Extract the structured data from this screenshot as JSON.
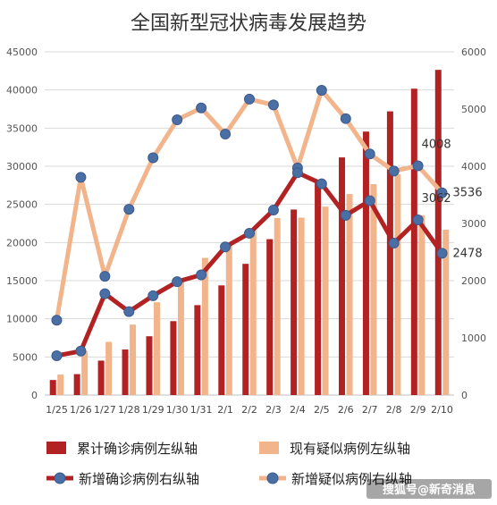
{
  "chart_data": {
    "type": "bar+line",
    "title": "全国新型冠状病毒发展趋势",
    "categories": [
      "1/25",
      "1/26",
      "1/27",
      "1/28",
      "1/29",
      "1/30",
      "1/31",
      "2/1",
      "2/2",
      "2/3",
      "2/4",
      "2/5",
      "2/6",
      "2/7",
      "2/8",
      "2/9",
      "2/10"
    ],
    "left_axis": {
      "min": 0,
      "max": 45000,
      "step": 5000,
      "ticks": [
        "0",
        "5000",
        "10000",
        "15000",
        "20000",
        "25000",
        "30000",
        "35000",
        "40000",
        "45000"
      ]
    },
    "right_axis": {
      "min": 0,
      "max": 6000,
      "step": 1000,
      "ticks": [
        "0",
        "1000",
        "2000",
        "3000",
        "4000",
        "5000",
        "6000"
      ]
    },
    "bar_series": [
      {
        "name": "累计确诊病例左纵轴",
        "color": "#b22222",
        "axis": "left",
        "values": [
          1975,
          2744,
          4515,
          5974,
          7711,
          9692,
          11791,
          14380,
          17205,
          20438,
          24324,
          28018,
          31161,
          34546,
          37198,
          40171,
          42638
        ]
      },
      {
        "name": "现有疑似病例左纵轴",
        "color": "#f2b48a",
        "axis": "left",
        "values": [
          2684,
          5794,
          6973,
          9239,
          12167,
          15238,
          17988,
          19544,
          21558,
          23214,
          23260,
          24702,
          26359,
          27657,
          28942,
          23589,
          21675
        ]
      }
    ],
    "line_series": [
      {
        "name": "新增确诊病例右纵轴",
        "color": "#b22222",
        "axis": "right",
        "values": [
          688,
          769,
          1771,
          1459,
          1737,
          1982,
          2102,
          2590,
          2829,
          3235,
          3887,
          3694,
          3143,
          3399,
          2656,
          3062,
          2478
        ]
      },
      {
        "name": "新增疑似病例右纵轴",
        "color": "#f2b48a",
        "axis": "right",
        "values": [
          1309,
          3806,
          2077,
          3248,
          4148,
          4812,
          5019,
          4562,
          5173,
          5072,
          3971,
          5328,
          4833,
          4214,
          3916,
          4008,
          3536
        ]
      }
    ],
    "data_labels": [
      {
        "text": "4008",
        "series": 1,
        "index": 15
      },
      {
        "text": "3536",
        "series": 1,
        "index": 16
      },
      {
        "text": "3062",
        "series": 0,
        "index": 15
      },
      {
        "text": "2478",
        "series": 0,
        "index": 16
      }
    ],
    "legend_position": "bottom",
    "watermark": "搜狐号@新奇消息"
  }
}
